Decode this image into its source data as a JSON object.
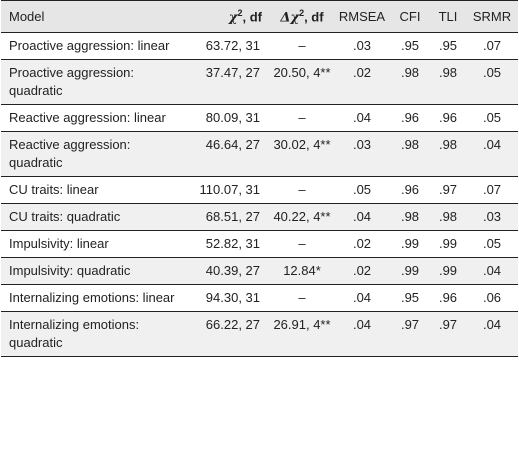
{
  "headers": {
    "model": "Model",
    "chi_symbol": "χ",
    "chi_sup": "2",
    "chi_rest": ", df",
    "dchi_delta": "Δ",
    "dchi_symbol": "χ",
    "dchi_sup": "2",
    "dchi_rest": ", df",
    "rmsea": "RMSEA",
    "cfi": "CFI",
    "tli": "TLI",
    "srmr": "SRMR"
  },
  "rows": [
    {
      "model": "Proactive aggression: linear",
      "chi": "63.72, 31",
      "dchi": "–",
      "rmsea": ".03",
      "cfi": ".95",
      "tli": ".95",
      "srmr": ".07"
    },
    {
      "model": "Proactive aggression: quadratic",
      "chi": "37.47, 27",
      "dchi": "20.50, 4**",
      "rmsea": ".02",
      "cfi": ".98",
      "tli": ".98",
      "srmr": ".05"
    },
    {
      "model": "Reactive aggression: linear",
      "chi": "80.09, 31",
      "dchi": "–",
      "rmsea": ".04",
      "cfi": ".96",
      "tli": ".96",
      "srmr": ".05"
    },
    {
      "model": "Reactive aggression: quadratic",
      "chi": "46.64, 27",
      "dchi": "30.02, 4**",
      "rmsea": ".03",
      "cfi": ".98",
      "tli": ".98",
      "srmr": ".04"
    },
    {
      "model": "CU traits: linear",
      "chi": "110.07, 31",
      "dchi": "–",
      "rmsea": ".05",
      "cfi": ".96",
      "tli": ".97",
      "srmr": ".07"
    },
    {
      "model": "CU traits: quadratic",
      "chi": "68.51, 27",
      "dchi": "40.22, 4**",
      "rmsea": ".04",
      "cfi": ".98",
      "tli": ".98",
      "srmr": ".03"
    },
    {
      "model": "Impulsivity: linear",
      "chi": "52.82, 31",
      "dchi": "–",
      "rmsea": ".02",
      "cfi": ".99",
      "tli": ".99",
      "srmr": ".05"
    },
    {
      "model": "Impulsivity: quadratic",
      "chi": "40.39, 27",
      "dchi": "12.84*",
      "rmsea": ".02",
      "cfi": ".99",
      "tli": ".99",
      "srmr": ".04"
    },
    {
      "model": "Internalizing emotions: linear",
      "chi": "94.30, 31",
      "dchi": "–",
      "rmsea": ".04",
      "cfi": ".95",
      "tli": ".96",
      "srmr": ".06"
    },
    {
      "model": "Internalizing emotions: quadratic",
      "chi": "66.22, 27",
      "dchi": "26.91, 4**",
      "rmsea": ".04",
      "cfi": ".97",
      "tli": ".97",
      "srmr": ".04"
    }
  ]
}
